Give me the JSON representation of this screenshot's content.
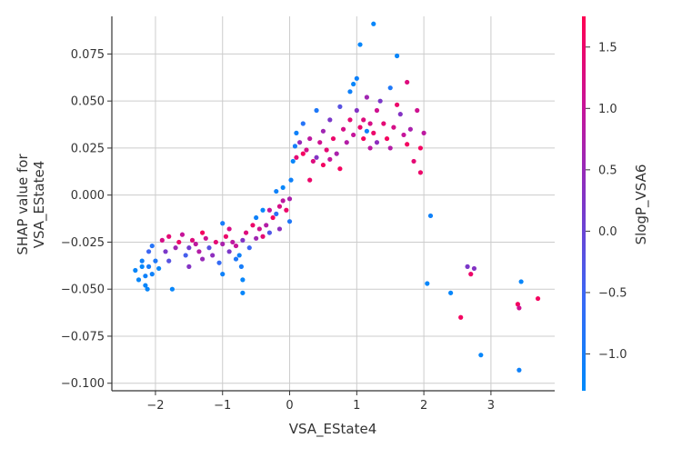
{
  "chart_data": {
    "type": "scatter",
    "xlabel": "VSA_EState4",
    "ylabel_line1": "SHAP value for",
    "ylabel_line2": "VSA_EState4",
    "xlim": [
      -2.65,
      3.95
    ],
    "ylim": [
      -0.104,
      0.095
    ],
    "x_ticks": [
      -2,
      -1,
      0,
      1,
      2,
      3
    ],
    "x_tick_labels": [
      "−2",
      "−1",
      "0",
      "1",
      "2",
      "3"
    ],
    "y_ticks": [
      -0.1,
      -0.075,
      -0.05,
      -0.025,
      0.0,
      0.025,
      0.05,
      0.075
    ],
    "y_tick_labels": [
      "−0.100",
      "−0.075",
      "−0.050",
      "−0.025",
      "0.000",
      "0.025",
      "0.050",
      "0.075"
    ],
    "grid": true,
    "colorbar": {
      "label": "SlogP_VSA6",
      "range": [
        -1.3,
        1.75
      ],
      "ticks": [
        -1.0,
        -0.5,
        0.0,
        0.5,
        1.0,
        1.5
      ],
      "tick_labels": [
        "−1.0",
        "−0.5",
        "0.0",
        "0.5",
        "1.0",
        "1.5"
      ],
      "colormap": [
        "#008afb",
        "#ff0052"
      ]
    },
    "points": [
      {
        "x": -2.3,
        "y": -0.04,
        "c": -1.2
      },
      {
        "x": -2.25,
        "y": -0.045,
        "c": -1.2
      },
      {
        "x": -2.2,
        "y": -0.035,
        "c": -1.1
      },
      {
        "x": -2.2,
        "y": -0.038,
        "c": -1.25
      },
      {
        "x": -2.15,
        "y": -0.043,
        "c": -1.1
      },
      {
        "x": -2.15,
        "y": -0.048,
        "c": -1.2
      },
      {
        "x": -2.12,
        "y": -0.05,
        "c": -1.2
      },
      {
        "x": -2.1,
        "y": -0.038,
        "c": -1.0
      },
      {
        "x": -2.1,
        "y": -0.03,
        "c": -0.5
      },
      {
        "x": -2.05,
        "y": -0.042,
        "c": -1.1
      },
      {
        "x": -2.05,
        "y": -0.027,
        "c": -0.8
      },
      {
        "x": -2.0,
        "y": -0.035,
        "c": -0.9
      },
      {
        "x": -1.95,
        "y": -0.039,
        "c": -1.2
      },
      {
        "x": -1.9,
        "y": -0.024,
        "c": 1.2
      },
      {
        "x": -1.85,
        "y": -0.03,
        "c": 0.2
      },
      {
        "x": -1.8,
        "y": -0.022,
        "c": 1.4
      },
      {
        "x": -1.8,
        "y": -0.035,
        "c": -0.2
      },
      {
        "x": -1.75,
        "y": -0.05,
        "c": -1.2
      },
      {
        "x": -1.7,
        "y": -0.028,
        "c": 0.6
      },
      {
        "x": -1.65,
        "y": -0.025,
        "c": 1.5
      },
      {
        "x": -1.6,
        "y": -0.021,
        "c": 1.0
      },
      {
        "x": -1.55,
        "y": -0.032,
        "c": -0.4
      },
      {
        "x": -1.5,
        "y": -0.028,
        "c": 0.1
      },
      {
        "x": -1.5,
        "y": -0.038,
        "c": 0.3
      },
      {
        "x": -1.45,
        "y": -0.024,
        "c": 1.3
      },
      {
        "x": -1.4,
        "y": -0.026,
        "c": 0.9
      },
      {
        "x": -1.35,
        "y": -0.03,
        "c": 0.8
      },
      {
        "x": -1.3,
        "y": -0.034,
        "c": 0.5
      },
      {
        "x": -1.3,
        "y": -0.02,
        "c": 1.6
      },
      {
        "x": -1.25,
        "y": -0.023,
        "c": 1.1
      },
      {
        "x": -1.2,
        "y": -0.028,
        "c": -0.2
      },
      {
        "x": -1.15,
        "y": -0.032,
        "c": 0.4
      },
      {
        "x": -1.1,
        "y": -0.025,
        "c": 1.4
      },
      {
        "x": -1.05,
        "y": -0.036,
        "c": -0.6
      },
      {
        "x": -1.0,
        "y": -0.042,
        "c": -1.1
      },
      {
        "x": -1.0,
        "y": -0.026,
        "c": 0.7
      },
      {
        "x": -1.0,
        "y": -0.015,
        "c": -1.0
      },
      {
        "x": -0.95,
        "y": -0.022,
        "c": 1.5
      },
      {
        "x": -0.9,
        "y": -0.018,
        "c": 1.2
      },
      {
        "x": -0.9,
        "y": -0.03,
        "c": 0.2
      },
      {
        "x": -0.85,
        "y": -0.025,
        "c": 0.9
      },
      {
        "x": -0.8,
        "y": -0.034,
        "c": -0.9
      },
      {
        "x": -0.8,
        "y": -0.027,
        "c": 1.0
      },
      {
        "x": -0.75,
        "y": -0.032,
        "c": -1.1
      },
      {
        "x": -0.72,
        "y": -0.038,
        "c": -1.0
      },
      {
        "x": -0.7,
        "y": -0.045,
        "c": -1.2
      },
      {
        "x": -0.7,
        "y": -0.052,
        "c": -1.2
      },
      {
        "x": -0.7,
        "y": -0.024,
        "c": 0.3
      },
      {
        "x": -0.65,
        "y": -0.02,
        "c": 1.3
      },
      {
        "x": -0.6,
        "y": -0.028,
        "c": -0.5
      },
      {
        "x": -0.55,
        "y": -0.016,
        "c": 1.5
      },
      {
        "x": -0.5,
        "y": -0.023,
        "c": 0.6
      },
      {
        "x": -0.5,
        "y": -0.012,
        "c": -1.1
      },
      {
        "x": -0.45,
        "y": -0.018,
        "c": 1.1
      },
      {
        "x": -0.4,
        "y": -0.008,
        "c": -1.2
      },
      {
        "x": -0.4,
        "y": -0.022,
        "c": 1.4
      },
      {
        "x": -0.35,
        "y": -0.016,
        "c": 0.8
      },
      {
        "x": -0.3,
        "y": -0.02,
        "c": -0.3
      },
      {
        "x": -0.3,
        "y": -0.008,
        "c": 1.0
      },
      {
        "x": -0.25,
        "y": -0.012,
        "c": 1.6
      },
      {
        "x": -0.2,
        "y": -0.01,
        "c": -0.7
      },
      {
        "x": -0.2,
        "y": 0.002,
        "c": -1.1
      },
      {
        "x": -0.15,
        "y": -0.006,
        "c": 1.2
      },
      {
        "x": -0.15,
        "y": -0.018,
        "c": 0.4
      },
      {
        "x": -0.1,
        "y": -0.003,
        "c": 0.9
      },
      {
        "x": -0.1,
        "y": 0.004,
        "c": -1.2
      },
      {
        "x": -0.05,
        "y": -0.008,
        "c": 1.5
      },
      {
        "x": 0.0,
        "y": -0.002,
        "c": 0.7
      },
      {
        "x": 0.0,
        "y": -0.014,
        "c": -0.9
      },
      {
        "x": 0.02,
        "y": 0.008,
        "c": -1.1
      },
      {
        "x": 0.05,
        "y": 0.018,
        "c": -1.2
      },
      {
        "x": 0.08,
        "y": 0.026,
        "c": -1.0
      },
      {
        "x": 0.1,
        "y": 0.02,
        "c": 1.4
      },
      {
        "x": 0.1,
        "y": 0.033,
        "c": -1.1
      },
      {
        "x": 0.15,
        "y": 0.028,
        "c": 0.5
      },
      {
        "x": 0.2,
        "y": 0.022,
        "c": 1.6
      },
      {
        "x": 0.2,
        "y": 0.038,
        "c": -0.8
      },
      {
        "x": 0.25,
        "y": 0.024,
        "c": 1.2
      },
      {
        "x": 0.3,
        "y": 0.03,
        "c": 0.9
      },
      {
        "x": 0.3,
        "y": 0.008,
        "c": 1.5
      },
      {
        "x": 0.35,
        "y": 0.018,
        "c": 1.3
      },
      {
        "x": 0.4,
        "y": 0.045,
        "c": -0.9
      },
      {
        "x": 0.4,
        "y": 0.02,
        "c": 0.3
      },
      {
        "x": 0.45,
        "y": 0.028,
        "c": 1.1
      },
      {
        "x": 0.5,
        "y": 0.016,
        "c": 1.6
      },
      {
        "x": 0.5,
        "y": 0.034,
        "c": 0.6
      },
      {
        "x": 0.55,
        "y": 0.024,
        "c": 1.4
      },
      {
        "x": 0.6,
        "y": 0.04,
        "c": 0.2
      },
      {
        "x": 0.6,
        "y": 0.019,
        "c": 1.0
      },
      {
        "x": 0.65,
        "y": 0.03,
        "c": 1.5
      },
      {
        "x": 0.7,
        "y": 0.022,
        "c": 0.7
      },
      {
        "x": 0.75,
        "y": 0.047,
        "c": -0.2
      },
      {
        "x": 0.75,
        "y": 0.014,
        "c": 1.6
      },
      {
        "x": 0.8,
        "y": 0.035,
        "c": 1.2
      },
      {
        "x": 0.85,
        "y": 0.028,
        "c": 0.8
      },
      {
        "x": 0.9,
        "y": 0.055,
        "c": -1.1
      },
      {
        "x": 0.9,
        "y": 0.04,
        "c": 1.4
      },
      {
        "x": 0.95,
        "y": 0.059,
        "c": -1.2
      },
      {
        "x": 0.95,
        "y": 0.032,
        "c": 1.0
      },
      {
        "x": 1.0,
        "y": 0.062,
        "c": -1.1
      },
      {
        "x": 1.0,
        "y": 0.045,
        "c": 0.3
      },
      {
        "x": 1.05,
        "y": 0.036,
        "c": 1.5
      },
      {
        "x": 1.05,
        "y": 0.08,
        "c": -1.2
      },
      {
        "x": 1.1,
        "y": 0.04,
        "c": 1.3
      },
      {
        "x": 1.1,
        "y": 0.03,
        "c": 1.6
      },
      {
        "x": 1.15,
        "y": 0.034,
        "c": -1.1
      },
      {
        "x": 1.15,
        "y": 0.052,
        "c": 0.6
      },
      {
        "x": 1.2,
        "y": 0.038,
        "c": 1.2
      },
      {
        "x": 1.2,
        "y": 0.025,
        "c": 0.9
      },
      {
        "x": 1.25,
        "y": 0.033,
        "c": 1.5
      },
      {
        "x": 1.25,
        "y": 0.091,
        "c": -1.2
      },
      {
        "x": 1.3,
        "y": 0.045,
        "c": 1.1
      },
      {
        "x": 1.3,
        "y": 0.028,
        "c": 0.4
      },
      {
        "x": 1.35,
        "y": 0.05,
        "c": 0.2
      },
      {
        "x": 1.4,
        "y": 0.038,
        "c": 1.4
      },
      {
        "x": 1.45,
        "y": 0.03,
        "c": 1.6
      },
      {
        "x": 1.5,
        "y": 0.057,
        "c": -0.9
      },
      {
        "x": 1.5,
        "y": 0.025,
        "c": 0.8
      },
      {
        "x": 1.55,
        "y": 0.036,
        "c": 1.2
      },
      {
        "x": 1.6,
        "y": 0.048,
        "c": 1.5
      },
      {
        "x": 1.6,
        "y": 0.074,
        "c": -1.2
      },
      {
        "x": 1.65,
        "y": 0.043,
        "c": 0.3
      },
      {
        "x": 1.7,
        "y": 0.032,
        "c": 1.0
      },
      {
        "x": 1.75,
        "y": 0.027,
        "c": 1.6
      },
      {
        "x": 1.75,
        "y": 0.06,
        "c": 1.3
      },
      {
        "x": 1.8,
        "y": 0.035,
        "c": 0.7
      },
      {
        "x": 1.85,
        "y": 0.018,
        "c": 1.4
      },
      {
        "x": 1.9,
        "y": 0.045,
        "c": 1.1
      },
      {
        "x": 1.95,
        "y": 0.025,
        "c": 1.6
      },
      {
        "x": 1.95,
        "y": 0.012,
        "c": 1.5
      },
      {
        "x": 2.0,
        "y": 0.033,
        "c": 0.9
      },
      {
        "x": 2.05,
        "y": -0.047,
        "c": -1.2
      },
      {
        "x": 2.1,
        "y": -0.011,
        "c": -1.1
      },
      {
        "x": 2.4,
        "y": -0.052,
        "c": -1.2
      },
      {
        "x": 2.55,
        "y": -0.065,
        "c": 1.6
      },
      {
        "x": 2.65,
        "y": -0.038,
        "c": 0.2
      },
      {
        "x": 2.7,
        "y": -0.042,
        "c": 1.5
      },
      {
        "x": 2.75,
        "y": -0.039,
        "c": 0.3
      },
      {
        "x": 2.85,
        "y": -0.085,
        "c": -1.2
      },
      {
        "x": 3.4,
        "y": -0.058,
        "c": 1.6
      },
      {
        "x": 3.42,
        "y": -0.06,
        "c": 1.1
      },
      {
        "x": 3.42,
        "y": -0.093,
        "c": -1.1
      },
      {
        "x": 3.45,
        "y": -0.046,
        "c": -1.2
      },
      {
        "x": 3.7,
        "y": -0.055,
        "c": 1.6
      }
    ]
  }
}
